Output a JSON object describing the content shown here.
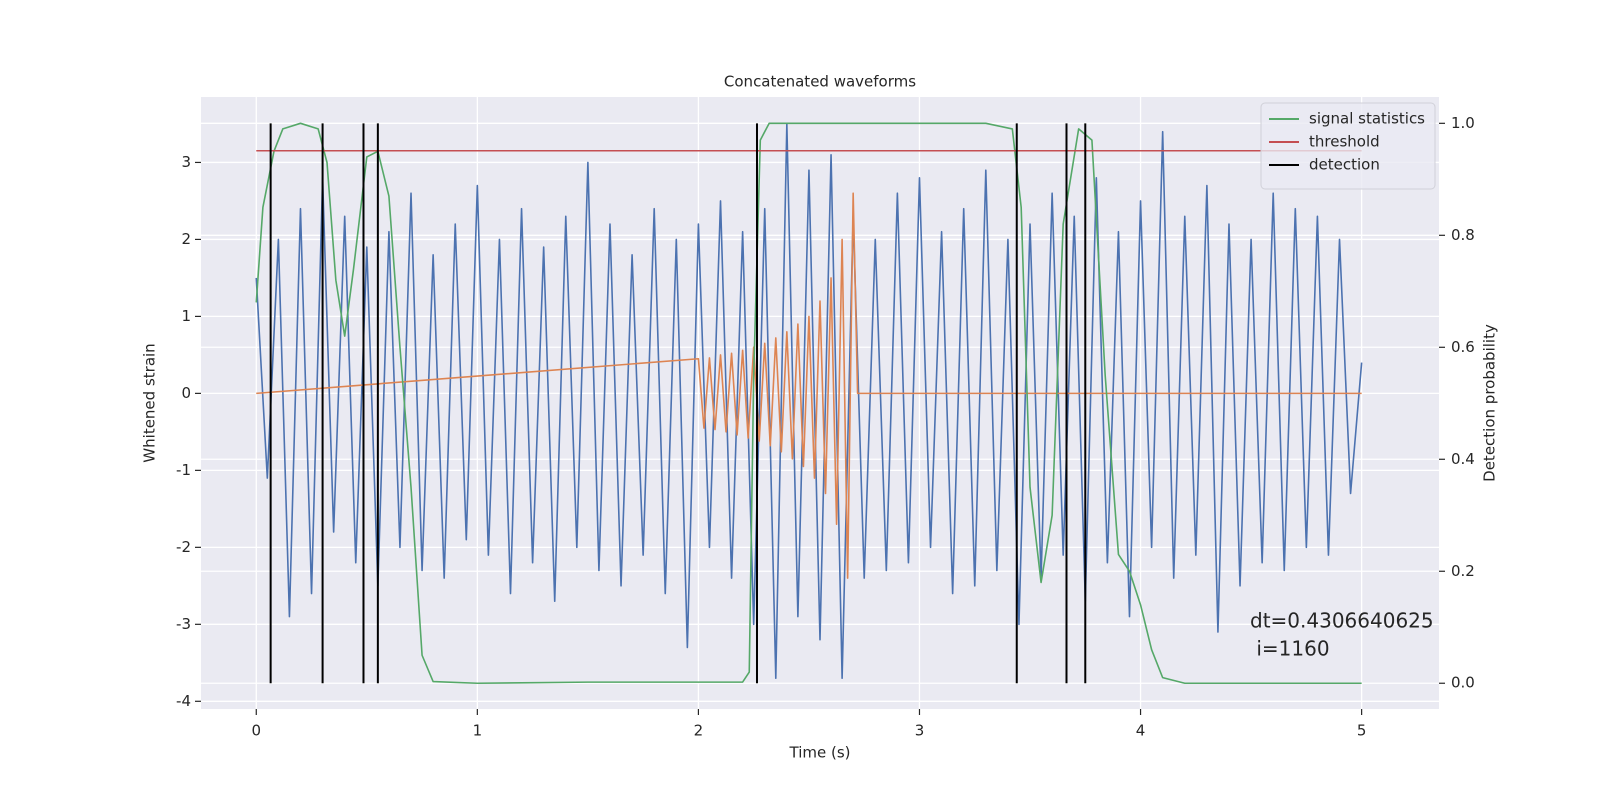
{
  "chart_data": {
    "type": "line",
    "title": "Concatenated waveforms",
    "xlabel": "Time (s)",
    "ylabel": "Whitened strain",
    "y2label": "Detection probability",
    "xlim": [
      -0.25,
      5.35
    ],
    "xticks": [
      0,
      1,
      2,
      3,
      4,
      5
    ],
    "ylim": [
      -4.1,
      3.85
    ],
    "yticks": [
      -4,
      -3,
      -2,
      -1,
      0,
      1,
      2,
      3
    ],
    "y2lim": [
      -0.046,
      1.047
    ],
    "y2ticks": [
      {
        "value": 0,
        "label": "0.0"
      },
      {
        "value": 0.2,
        "label": "0.2"
      },
      {
        "value": 0.4,
        "label": "0.4"
      },
      {
        "value": 0.6,
        "label": "0.6"
      },
      {
        "value": 0.8,
        "label": "0.8"
      },
      {
        "value": 1,
        "label": "1.0"
      }
    ],
    "grid": true,
    "legend": "upper right",
    "annotation": [
      "dt=0.4306640625",
      " i=1160"
    ],
    "series": [
      {
        "color": "#4c72b0",
        "axis": "y",
        "x": [
          0,
          0.05,
          0.1,
          0.15,
          0.2,
          0.25,
          0.3,
          0.35,
          0.4,
          0.45,
          0.5,
          0.55,
          0.6,
          0.65,
          0.7,
          0.75,
          0.8,
          0.85,
          0.9,
          0.95,
          1,
          1.05,
          1.1,
          1.15,
          1.2,
          1.25,
          1.3,
          1.35,
          1.4,
          1.45,
          1.5,
          1.55,
          1.6,
          1.65,
          1.7,
          1.75,
          1.8,
          1.85,
          1.9,
          1.95,
          2,
          2.05,
          2.1,
          2.15,
          2.2,
          2.25,
          2.3,
          2.35,
          2.4,
          2.45,
          2.5,
          2.55,
          2.6,
          2.65,
          2.7,
          2.75,
          2.8,
          2.85,
          2.9,
          2.95,
          3,
          3.05,
          3.1,
          3.15,
          3.2,
          3.25,
          3.3,
          3.35,
          3.4,
          3.45,
          3.5,
          3.55,
          3.6,
          3.65,
          3.7,
          3.75,
          3.8,
          3.85,
          3.9,
          3.95,
          4,
          4.05,
          4.1,
          4.15,
          4.2,
          4.25,
          4.3,
          4.35,
          4.4,
          4.45,
          4.5,
          4.55,
          4.6,
          4.65,
          4.7,
          4.75,
          4.8,
          4.85,
          4.9,
          4.95,
          5
        ],
        "values": [
          1.5,
          -1.1,
          2.0,
          -2.9,
          2.4,
          -2.6,
          2.8,
          -1.8,
          2.3,
          -2.2,
          1.9,
          -2.5,
          2.1,
          -2.0,
          2.6,
          -2.3,
          1.8,
          -2.4,
          2.2,
          -1.9,
          2.7,
          -2.1,
          2.0,
          -2.6,
          2.4,
          -2.2,
          1.9,
          -2.7,
          2.3,
          -2.0,
          3.0,
          -2.3,
          2.2,
          -2.5,
          1.8,
          -2.1,
          2.4,
          -2.6,
          2.0,
          -3.3,
          2.2,
          -2.0,
          2.5,
          -2.4,
          2.1,
          -3.0,
          2.4,
          -3.7,
          3.5,
          -2.9,
          2.9,
          -3.2,
          3.1,
          -3.7,
          2.3,
          -2.4,
          2.0,
          -2.3,
          2.6,
          -2.2,
          2.8,
          -2.0,
          2.1,
          -2.6,
          2.4,
          -2.5,
          2.9,
          -2.3,
          2.0,
          -3.0,
          2.2,
          -2.4,
          2.6,
          -2.1,
          2.3,
          -2.7,
          2.8,
          -2.2,
          2.1,
          -2.9,
          2.5,
          -2.0,
          3.4,
          -2.4,
          2.3,
          -2.1,
          2.7,
          -3.1,
          2.2,
          -2.5,
          2.0,
          -2.2,
          2.6,
          -2.3,
          2.4,
          -2.0,
          2.3,
          -2.1,
          2.0,
          -1.3,
          0.4
        ]
      },
      {
        "color": "#dd8452",
        "axis": "y",
        "x": [
          0,
          2.0,
          2.025,
          2.05,
          2.075,
          2.1,
          2.125,
          2.15,
          2.175,
          2.2,
          2.225,
          2.25,
          2.275,
          2.3,
          2.325,
          2.35,
          2.375,
          2.4,
          2.425,
          2.45,
          2.475,
          2.5,
          2.525,
          2.55,
          2.575,
          2.6,
          2.625,
          2.65,
          2.675,
          2.7,
          2.72,
          5
        ],
        "values": [
          0,
          0.45,
          -0.45,
          0.46,
          -0.47,
          0.5,
          -0.5,
          0.52,
          -0.54,
          0.56,
          -0.58,
          0.6,
          -0.62,
          0.65,
          -0.68,
          0.72,
          -0.76,
          0.8,
          -0.85,
          0.9,
          -0.95,
          1.0,
          -1.1,
          1.2,
          -1.3,
          1.5,
          -1.7,
          2.0,
          -2.4,
          2.6,
          0,
          0
        ]
      },
      {
        "name": "signal statistics",
        "color": "#55a868",
        "axis": "y2",
        "x": [
          0,
          0.03,
          0.08,
          0.12,
          0.2,
          0.28,
          0.32,
          0.36,
          0.4,
          0.44,
          0.5,
          0.55,
          0.6,
          0.65,
          0.7,
          0.75,
          0.8,
          1.0,
          1.5,
          2.2,
          2.23,
          2.25,
          2.28,
          2.32,
          3.3,
          3.42,
          3.46,
          3.5,
          3.55,
          3.6,
          3.65,
          3.72,
          3.78,
          3.84,
          3.9,
          3.95,
          4.0,
          4.05,
          4.1,
          4.2,
          5.0
        ],
        "values": [
          0.68,
          0.85,
          0.95,
          0.99,
          1.0,
          0.99,
          0.93,
          0.72,
          0.62,
          0.74,
          0.94,
          0.95,
          0.87,
          0.6,
          0.35,
          0.05,
          0.003,
          0.0,
          0.002,
          0.002,
          0.02,
          0.55,
          0.97,
          1.0,
          1.0,
          0.99,
          0.85,
          0.35,
          0.18,
          0.3,
          0.82,
          0.99,
          0.97,
          0.55,
          0.23,
          0.2,
          0.14,
          0.06,
          0.01,
          0.0,
          0.0
        ]
      },
      {
        "name": "threshold",
        "color": "#c44e52",
        "axis": "y2",
        "x": [
          0,
          5
        ],
        "values": [
          0.951,
          0.951
        ]
      },
      {
        "name": "detection",
        "color": "#000000",
        "axis": "y2",
        "type": "vlines",
        "x": [
          0.065,
          0.3,
          0.485,
          0.55,
          2.265,
          3.44,
          3.665,
          3.75
        ],
        "ymin": 0,
        "ymax": 1
      }
    ]
  }
}
